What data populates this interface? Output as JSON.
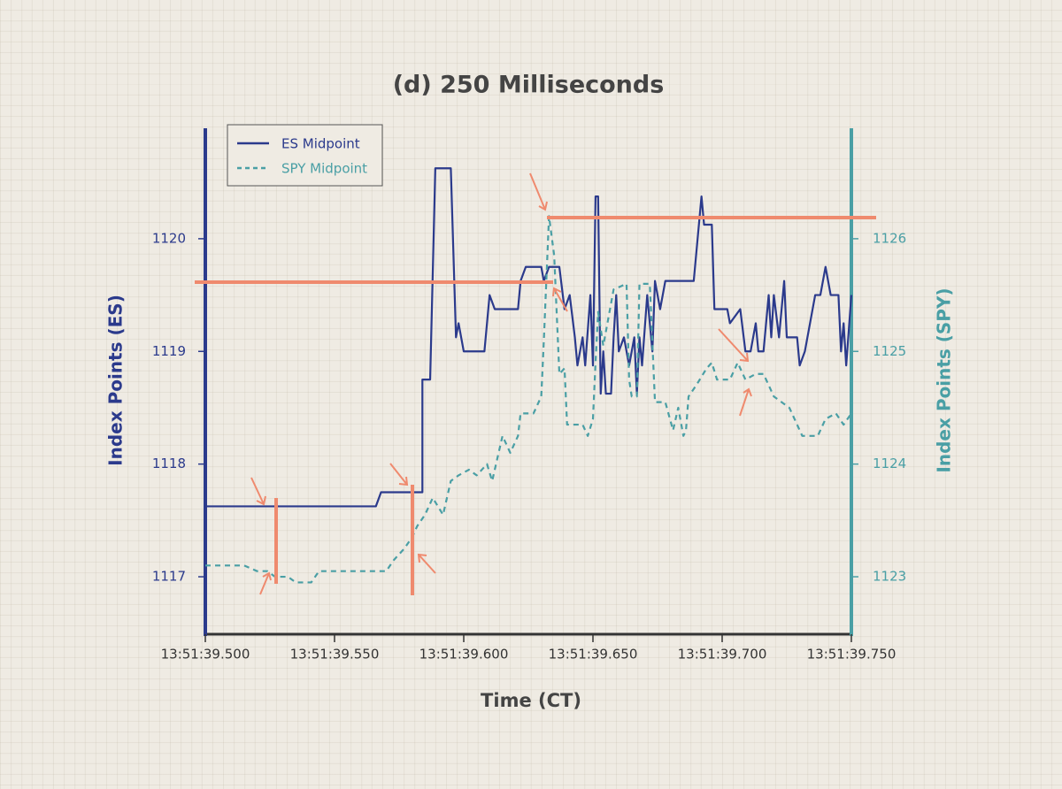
{
  "chart_data": {
    "type": "line",
    "title": "(d) 250 Milliseconds",
    "xlabel": "Time (CT)",
    "ylabel": "Index Points (ES)",
    "y2label": "Index Points (SPY)",
    "xlim": [
      "13:51:39.500",
      "13:51:39.750"
    ],
    "xticks": [
      "13:51:39.500",
      "13:51:39.550",
      "13:51:39.600",
      "13:51:39.650",
      "13:51:39.700",
      "13:51:39.750"
    ],
    "ylim": [
      1116.5,
      1121
    ],
    "yticks": [
      1117,
      1118,
      1119,
      1120
    ],
    "y2lim": [
      1122.5,
      1127
    ],
    "y2ticks": [
      1123,
      1124,
      1125,
      1126
    ],
    "legend": "upper left",
    "series": [
      {
        "name": "ES Midpoint",
        "color": "#2b3a8c",
        "axis": "y",
        "x": [
          "13:51:39.500",
          "13:51:39.566",
          "13:51:39.568",
          "13:51:39.584",
          "13:51:39.584",
          "13:51:39.587",
          "13:51:39.589",
          "13:51:39.595",
          "13:51:39.597",
          "13:51:39.598",
          "13:51:39.600",
          "13:51:39.608",
          "13:51:39.610",
          "13:51:39.612",
          "13:51:39.621",
          "13:51:39.622",
          "13:51:39.624",
          "13:51:39.630",
          "13:51:39.631",
          "13:51:39.633",
          "13:51:39.637",
          "13:51:39.639",
          "13:51:39.641",
          "13:51:39.643",
          "13:51:39.644",
          "13:51:39.646",
          "13:51:39.647",
          "13:51:39.649",
          "13:51:39.650",
          "13:51:39.651",
          "13:51:39.652",
          "13:51:39.653",
          "13:51:39.654",
          "13:51:39.655",
          "13:51:39.657",
          "13:51:39.658",
          "13:51:39.659",
          "13:51:39.660",
          "13:51:39.662",
          "13:51:39.664",
          "13:51:39.666",
          "13:51:39.667",
          "13:51:39.668",
          "13:51:39.669",
          "13:51:39.671",
          "13:51:39.673",
          "13:51:39.674",
          "13:51:39.676",
          "13:51:39.678",
          "13:51:39.689",
          "13:51:39.692",
          "13:51:39.693",
          "13:51:39.696",
          "13:51:39.697",
          "13:51:39.702",
          "13:51:39.703",
          "13:51:39.707",
          "13:51:39.709",
          "13:51:39.711",
          "13:51:39.713",
          "13:51:39.714",
          "13:51:39.716",
          "13:51:39.718",
          "13:51:39.719",
          "13:51:39.720",
          "13:51:39.722",
          "13:51:39.724",
          "13:51:39.725",
          "13:51:39.729",
          "13:51:39.730",
          "13:51:39.732",
          "13:51:39.736",
          "13:51:39.738",
          "13:51:39.740",
          "13:51:39.742",
          "13:51:39.745",
          "13:51:39.746",
          "13:51:39.747",
          "13:51:39.748",
          "13:51:39.750"
        ],
        "values": [
          1117.625,
          1117.625,
          1117.75,
          1117.75,
          1118.75,
          1118.75,
          1120.625,
          1120.625,
          1119.125,
          1119.25,
          1119,
          1119,
          1119.5,
          1119.375,
          1119.375,
          1119.625,
          1119.75,
          1119.75,
          1119.625,
          1119.75,
          1119.75,
          1119.375,
          1119.5,
          1119.125,
          1118.875,
          1119.125,
          1118.875,
          1119.5,
          1118.875,
          1120.375,
          1120.375,
          1118.625,
          1119,
          1118.625,
          1118.625,
          1119.125,
          1119.5,
          1119,
          1119.125,
          1118.875,
          1119.125,
          1118.625,
          1119.125,
          1118.875,
          1119.5,
          1119,
          1119.625,
          1119.375,
          1119.625,
          1119.625,
          1120.375,
          1120.125,
          1120.125,
          1119.375,
          1119.375,
          1119.25,
          1119.375,
          1119,
          1119,
          1119.25,
          1119,
          1119,
          1119.5,
          1119.125,
          1119.5,
          1119.125,
          1119.625,
          1119.125,
          1119.125,
          1118.875,
          1119,
          1119.5,
          1119.5,
          1119.75,
          1119.5,
          1119.5,
          1119,
          1119.25,
          1118.875,
          1119.5
        ]
      },
      {
        "name": "SPY Midpoint",
        "color": "#4a9fa5",
        "axis": "y2",
        "dashed": true,
        "x": [
          "13:51:39.500",
          "13:51:39.515",
          "13:51:39.520",
          "13:51:39.524",
          "13:51:39.527",
          "13:51:39.532",
          "13:51:39.535",
          "13:51:39.541",
          "13:51:39.544",
          "13:51:39.570",
          "13:51:39.573",
          "13:51:39.577",
          "13:51:39.580",
          "13:51:39.582",
          "13:51:39.585",
          "13:51:39.588",
          "13:51:39.592",
          "13:51:39.595",
          "13:51:39.598",
          "13:51:39.602",
          "13:51:39.605",
          "13:51:39.609",
          "13:51:39.611",
          "13:51:39.613",
          "13:51:39.615",
          "13:51:39.618",
          "13:51:39.621",
          "13:51:39.622",
          "13:51:39.627",
          "13:51:39.630",
          "13:51:39.631",
          "13:51:39.633",
          "13:51:39.635",
          "13:51:39.637",
          "13:51:39.639",
          "13:51:39.640",
          "13:51:39.646",
          "13:51:39.648",
          "13:51:39.650",
          "13:51:39.651",
          "13:51:39.652",
          "13:51:39.654",
          "13:51:39.656",
          "13:51:39.658",
          "13:51:39.663",
          "13:51:39.664",
          "13:51:39.665",
          "13:51:39.667",
          "13:51:39.668",
          "13:51:39.672",
          "13:51:39.674",
          "13:51:39.678",
          "13:51:39.681",
          "13:51:39.683",
          "13:51:39.685",
          "13:51:39.686",
          "13:51:39.687",
          "13:51:39.690",
          "13:51:39.694",
          "13:51:39.696",
          "13:51:39.698",
          "13:51:39.703",
          "13:51:39.706",
          "13:51:39.709",
          "13:51:39.713",
          "13:51:39.716",
          "13:51:39.720",
          "13:51:39.726",
          "13:51:39.731",
          "13:51:39.737",
          "13:51:39.740",
          "13:51:39.744",
          "13:51:39.747",
          "13:51:39.750"
        ],
        "values": [
          1123.1,
          1123.1,
          1123.05,
          1123.05,
          1123.0,
          1123.0,
          1122.95,
          1122.95,
          1123.05,
          1123.05,
          1123.15,
          1123.25,
          1123.35,
          1123.45,
          1123.55,
          1123.7,
          1123.55,
          1123.85,
          1123.9,
          1123.95,
          1123.9,
          1124.0,
          1123.85,
          1124.05,
          1124.25,
          1124.1,
          1124.25,
          1124.45,
          1124.45,
          1124.6,
          1125.1,
          1126.2,
          1125.85,
          1124.8,
          1124.85,
          1124.35,
          1124.35,
          1124.25,
          1124.4,
          1124.9,
          1125.35,
          1125.05,
          1125.3,
          1125.55,
          1125.6,
          1124.75,
          1124.6,
          1124.6,
          1125.6,
          1125.6,
          1124.55,
          1124.55,
          1124.3,
          1124.5,
          1124.25,
          1124.3,
          1124.6,
          1124.7,
          1124.85,
          1124.9,
          1124.75,
          1124.75,
          1124.9,
          1124.75,
          1124.8,
          1124.8,
          1124.6,
          1124.5,
          1124.25,
          1124.25,
          1124.4,
          1124.45,
          1124.35,
          1124.45
        ]
      }
    ]
  }
}
